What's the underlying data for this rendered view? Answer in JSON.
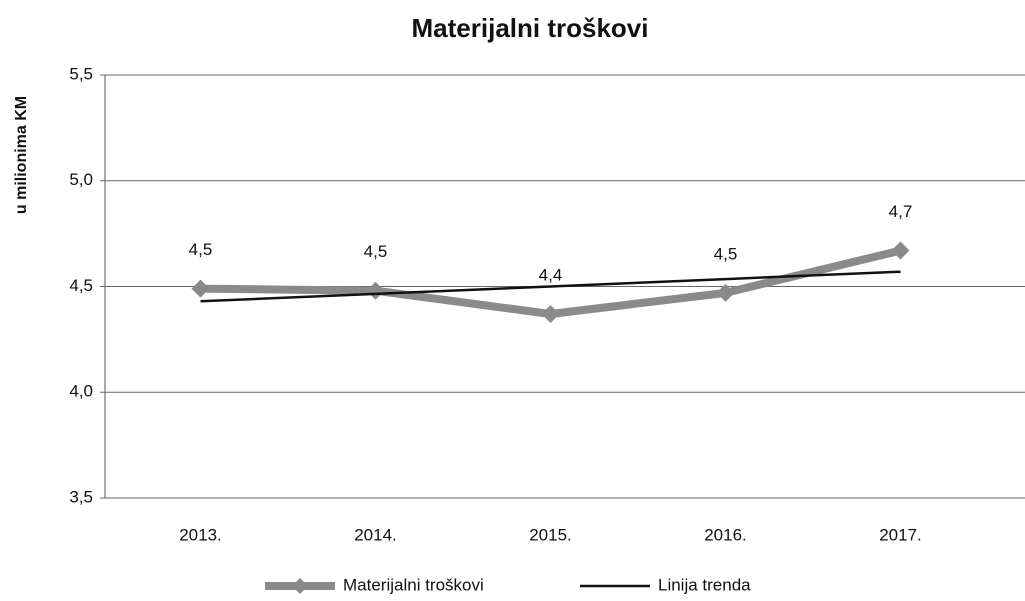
{
  "chart_data": {
    "type": "line",
    "title": "Materijalni troškovi",
    "y_label": "u milionima KM",
    "categories": [
      "2013.",
      "2014.",
      "2015.",
      "2016.",
      "2017."
    ],
    "series": [
      {
        "name": "Materijalni troškovi",
        "color": "#8a8a8a",
        "values": [
          4.49,
          4.48,
          4.37,
          4.47,
          4.67
        ],
        "value_labels": [
          "4,5",
          "4,5",
          "4,4",
          "4,5",
          "4,7"
        ]
      },
      {
        "name": "Linija trenda",
        "color": "#111111",
        "values": [
          4.43,
          4.465,
          4.5,
          4.535,
          4.57
        ]
      }
    ],
    "ylim": [
      3.5,
      5.5
    ],
    "yticks": [
      {
        "value": 3.5,
        "label": "3,5"
      },
      {
        "value": 4.0,
        "label": "4,0"
      },
      {
        "value": 4.5,
        "label": "4,5"
      },
      {
        "value": 5.0,
        "label": "5,0"
      },
      {
        "value": 5.5,
        "label": "5,5"
      }
    ],
    "grid": true
  }
}
